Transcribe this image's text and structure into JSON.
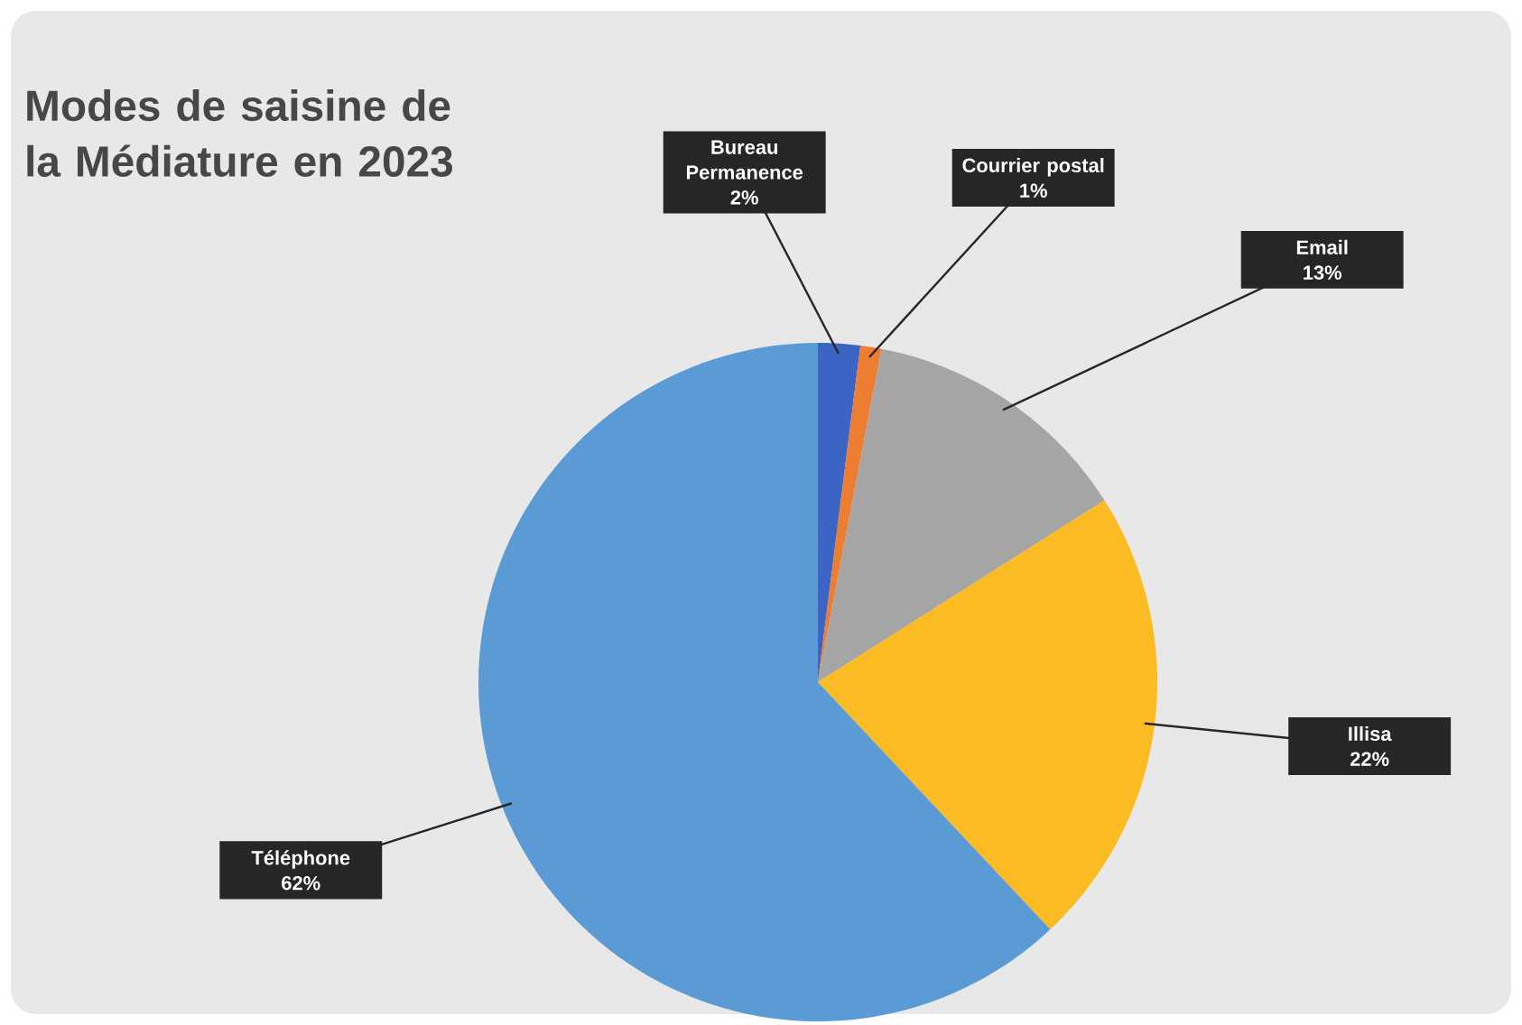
{
  "chart_data": {
    "type": "pie",
    "title": "Modes de saisine de la Médiature en 2023",
    "categories": [
      "Bureau Permanence",
      "Courrier postal",
      "Email",
      "Illisa",
      "Téléphone"
    ],
    "values": [
      2,
      1,
      13,
      22,
      62
    ],
    "colors": [
      "#3c64c4",
      "#ed7d31",
      "#a5a5a5",
      "#fbbb22",
      "#5b9bd5"
    ],
    "value_labels": [
      "2%",
      "1%",
      "13%",
      "22%",
      "62%"
    ]
  }
}
